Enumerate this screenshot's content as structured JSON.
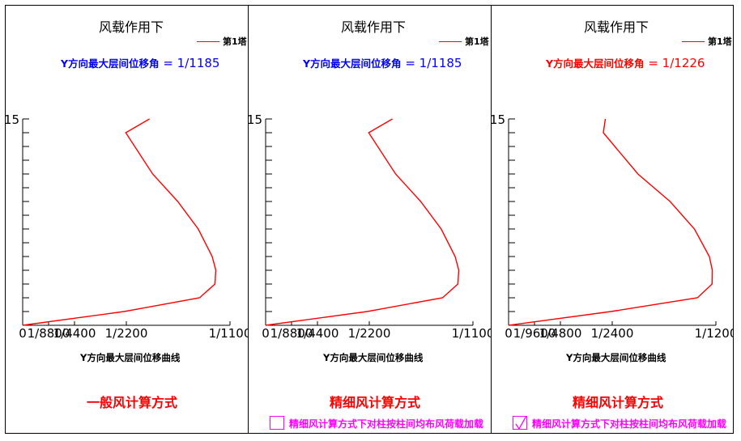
{
  "panels": [
    {
      "title": "风载作用下",
      "legend": "第1塔",
      "drift_prefix": "Y方向最大层间位移角",
      "drift_value": "= 1/1185",
      "drift_color": "#0000ff",
      "xaxis_title": "Y方向最大层间位移曲线",
      "method": "一般风计算方式",
      "checkbox": null,
      "chart_data": {
        "type": "line",
        "title": "风载作用下",
        "xlabel": "Y方向最大层间位移曲线",
        "ylabel": "",
        "x_tick_labels": [
          "0",
          "1/8800",
          "1/4400",
          "1/2200",
          "1/1100"
        ],
        "x_tick_values": [
          0,
          0.000113636,
          0.000227273,
          0.000454545,
          0.000909091
        ],
        "xlim": [
          0,
          0.000909091
        ],
        "y_tick_labels": [
          "15"
        ],
        "ylim": [
          0,
          15
        ],
        "y_minor_ticks": 15,
        "series": [
          {
            "name": "第1塔",
            "color": "#ff0000",
            "x": [
              0,
              0.000445,
              0.000776,
              0.000843,
              0.000847,
              0.000831,
              0.00077,
              0.00068,
              0.00057,
              0.000452,
              0.000556
            ],
            "y": [
              0,
              1,
              2,
              3,
              4,
              5,
              7,
              9,
              11,
              14,
              15
            ]
          }
        ]
      }
    },
    {
      "title": "风载作用下",
      "legend": "第1塔",
      "drift_prefix": "Y方向最大层间位移角",
      "drift_value": "= 1/1185",
      "drift_color": "#0000ff",
      "xaxis_title": "Y方向最大层间位移曲线",
      "method": "精细风计算方式",
      "checkbox": {
        "checked": false,
        "label": "精细风计算方式下对柱按柱间均布风荷载加载"
      },
      "chart_data": {
        "type": "line",
        "title": "风载作用下",
        "xlabel": "Y方向最大层间位移曲线",
        "ylabel": "",
        "x_tick_labels": [
          "0",
          "1/8800",
          "1/4400",
          "1/2200",
          "1/1100"
        ],
        "x_tick_values": [
          0,
          0.000113636,
          0.000227273,
          0.000454545,
          0.000909091
        ],
        "xlim": [
          0,
          0.000909091
        ],
        "y_tick_labels": [
          "15"
        ],
        "ylim": [
          0,
          15
        ],
        "y_minor_ticks": 15,
        "series": [
          {
            "name": "第1塔",
            "color": "#ff0000",
            "x": [
              0,
              0.000445,
              0.000776,
              0.000843,
              0.000847,
              0.000831,
              0.00077,
              0.00068,
              0.00057,
              0.000452,
              0.000556
            ],
            "y": [
              0,
              1,
              2,
              3,
              4,
              5,
              7,
              9,
              11,
              14,
              15
            ]
          }
        ]
      }
    },
    {
      "title": "风载作用下",
      "legend": "第1塔",
      "drift_prefix": "Y方向最大层间位移角",
      "drift_value": "= 1/1226",
      "drift_color": "#ff0000",
      "xaxis_title": "Y方向最大层间位移曲线",
      "method": "精细风计算方式",
      "checkbox": {
        "checked": true,
        "label": "精细风计算方式下对柱按柱间均布风荷载加载"
      },
      "chart_data": {
        "type": "line",
        "title": "风载作用下",
        "xlabel": "Y方向最大层间位移曲线",
        "ylabel": "",
        "x_tick_labels": [
          "0",
          "1/9600",
          "1/4800",
          "1/2400",
          "1/1200"
        ],
        "x_tick_values": [
          0,
          0.000104167,
          0.000208333,
          0.000416667,
          0.000833333
        ],
        "xlim": [
          0,
          0.000833333
        ],
        "y_tick_labels": [
          "15"
        ],
        "ylim": [
          0,
          15
        ],
        "y_minor_ticks": 15,
        "series": [
          {
            "name": "第1塔",
            "color": "#ff0000",
            "x": [
              0,
              0.000411,
              0.000759,
              0.000818,
              0.000819,
              0.000807,
              0.000747,
              0.000649,
              0.00052,
              0.000381,
              0.000389
            ],
            "y": [
              0,
              1,
              2,
              3,
              4,
              5,
              7,
              9,
              11,
              14,
              15
            ]
          }
        ]
      }
    }
  ]
}
